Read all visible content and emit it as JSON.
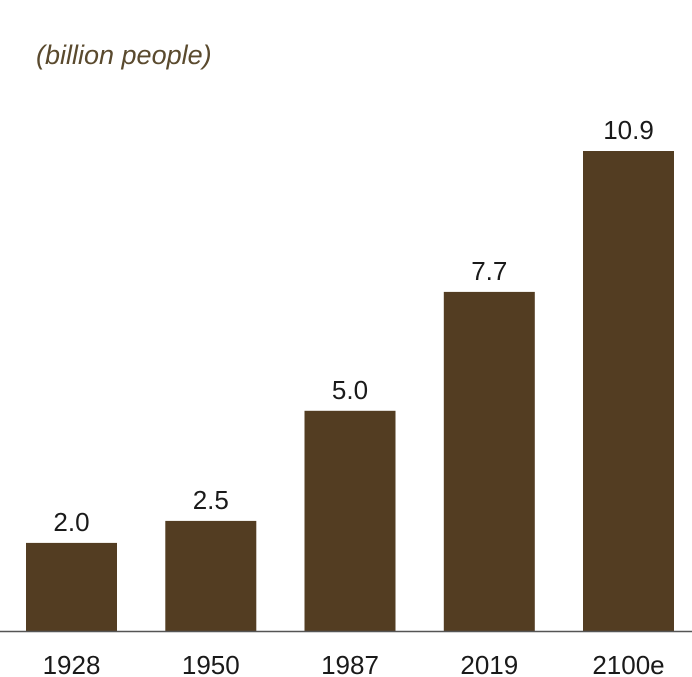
{
  "chart_data": {
    "type": "bar",
    "subtitle": "(billion people)",
    "categories": [
      "1928",
      "1950",
      "1987",
      "2019",
      "2100e"
    ],
    "values": [
      2.0,
      2.5,
      5.0,
      7.7,
      10.9
    ],
    "value_labels": [
      "2.0",
      "2.5",
      "5.0",
      "7.7",
      "10.9"
    ],
    "xlabel": "",
    "ylabel": "",
    "ylim": [
      0,
      10.9
    ],
    "grid": false,
    "legend": "none",
    "colors": {
      "bar": "#533d22",
      "axis": "#555555",
      "subtitle": "#5a4a2e",
      "text": "#1a1a1a"
    }
  }
}
